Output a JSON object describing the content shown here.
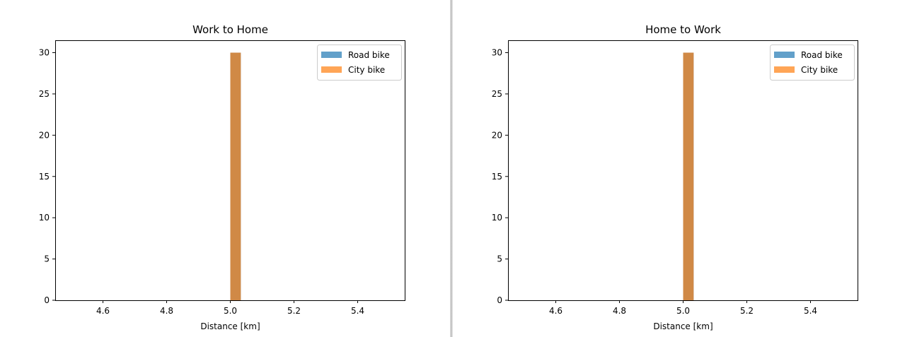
{
  "chart_data": [
    {
      "type": "bar",
      "subtype": "histogram-overlay",
      "title": "Work to Home",
      "xlabel": "Distance [km]",
      "ylabel": "",
      "xlim": [
        4.45,
        5.55
      ],
      "ylim": [
        0,
        31.5
      ],
      "xticks": [
        "4.6",
        "4.8",
        "5.0",
        "5.2",
        "5.4"
      ],
      "yticks": [
        "0",
        "5",
        "10",
        "15",
        "20",
        "25",
        "30"
      ],
      "grid": false,
      "legend": "top-right",
      "series": [
        {
          "name": "Road bike",
          "color": "#1f77b4",
          "opacity": 0.7,
          "bins": [
            [
              5.0,
              5.033,
              30
            ]
          ]
        },
        {
          "name": "City bike",
          "color": "#ff7f0e",
          "opacity": 0.7,
          "bins": [
            [
              5.0,
              5.033,
              30
            ]
          ]
        }
      ]
    },
    {
      "type": "bar",
      "subtype": "histogram-overlay",
      "title": "Home to Work",
      "xlabel": "Distance [km]",
      "ylabel": "",
      "xlim": [
        4.45,
        5.55
      ],
      "ylim": [
        0,
        31.5
      ],
      "xticks": [
        "4.6",
        "4.8",
        "5.0",
        "5.2",
        "5.4"
      ],
      "yticks": [
        "0",
        "5",
        "10",
        "15",
        "20",
        "25",
        "30"
      ],
      "grid": false,
      "legend": "top-right",
      "series": [
        {
          "name": "Road bike",
          "color": "#1f77b4",
          "opacity": 0.7,
          "bins": [
            [
              5.0,
              5.033,
              30
            ]
          ]
        },
        {
          "name": "City bike",
          "color": "#ff7f0e",
          "opacity": 0.7,
          "bins": [
            [
              5.0,
              5.033,
              30
            ]
          ]
        }
      ]
    }
  ]
}
